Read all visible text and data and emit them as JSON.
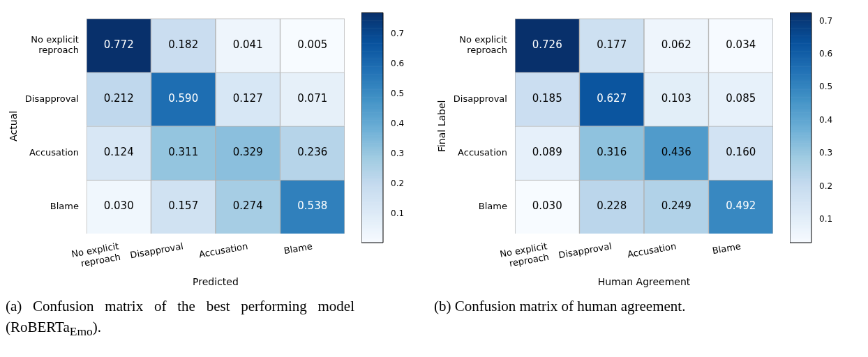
{
  "chart_data": [
    {
      "type": "heatmap",
      "xlabel": "Predicted",
      "ylabel": "Actual",
      "categories": [
        "No explicit reproach",
        "Disapproval",
        "Accusation",
        "Blame"
      ],
      "y_categories": [
        "No explicit reproach",
        "Disapproval",
        "Accusation",
        "Blame"
      ],
      "cells": [
        [
          0.772,
          0.182,
          0.041,
          0.005
        ],
        [
          0.212,
          0.59,
          0.127,
          0.071
        ],
        [
          0.124,
          0.311,
          0.329,
          0.236
        ],
        [
          0.03,
          0.157,
          0.274,
          0.538
        ]
      ],
      "cell_labels": [
        [
          "0.772",
          "0.182",
          "0.041",
          "0.005"
        ],
        [
          "0.212",
          "0.590",
          "0.127",
          "0.071"
        ],
        [
          "0.124",
          "0.311",
          "0.329",
          "0.236"
        ],
        [
          "0.030",
          "0.157",
          "0.274",
          "0.538"
        ]
      ],
      "data_labels": true,
      "clim": [
        0.005,
        0.772
      ],
      "cticks": [
        0.1,
        0.2,
        0.3,
        0.4,
        0.5,
        0.6,
        0.7
      ],
      "annotations": [
        "(a) Confusion matrix of the best performing model (RoBERTa$_{Emo}$)."
      ]
    },
    {
      "type": "heatmap",
      "xlabel": "Human Agreement",
      "ylabel": "Final Label",
      "categories": [
        "No explicit reproach",
        "Disapproval",
        "Accusation",
        "Blame"
      ],
      "y_categories": [
        "No explicit reproach",
        "Disapproval",
        "Accusation",
        "Blame"
      ],
      "cells": [
        [
          0.726,
          0.177,
          0.062,
          0.034
        ],
        [
          0.185,
          0.627,
          0.103,
          0.085
        ],
        [
          0.089,
          0.316,
          0.436,
          0.16
        ],
        [
          0.03,
          0.228,
          0.249,
          0.492
        ]
      ],
      "cell_labels": [
        [
          "0.726",
          "0.177",
          "0.062",
          "0.034"
        ],
        [
          "0.185",
          "0.627",
          "0.103",
          "0.085"
        ],
        [
          "0.089",
          "0.316",
          "0.436",
          "0.160"
        ],
        [
          "0.030",
          "0.228",
          "0.249",
          "0.492"
        ]
      ],
      "data_labels": true,
      "clim": [
        0.03,
        0.726
      ],
      "cticks": [
        0.1,
        0.2,
        0.3,
        0.4,
        0.5,
        0.6,
        0.7
      ],
      "annotations": [
        "(b) Confusion matrix of human agreement."
      ]
    }
  ]
}
